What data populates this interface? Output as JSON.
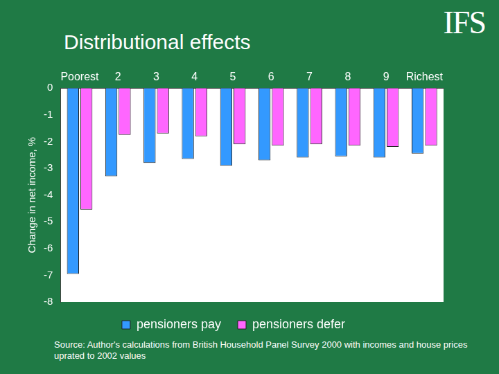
{
  "chart_data": {
    "type": "bar",
    "title": "Distributional effects",
    "logo": "IFS",
    "y_label": "Change in net income, %",
    "source": "Source: Author's calculations from British Household Panel Survey 2000 with incomes and house prices uprated to 2002 values",
    "categories": [
      "Poorest",
      "2",
      "3",
      "4",
      "5",
      "6",
      "7",
      "8",
      "9",
      "Richest"
    ],
    "series": [
      {
        "name": "pensioners pay",
        "color": "#3399ff",
        "values": [
          -6.95,
          -3.3,
          -2.8,
          -2.65,
          -2.9,
          -2.7,
          -2.6,
          -2.55,
          -2.6,
          -2.45
        ]
      },
      {
        "name": "pensioners defer",
        "color": "#ff66ff",
        "values": [
          -4.55,
          -1.75,
          -1.7,
          -1.8,
          -2.1,
          -2.15,
          -2.1,
          -2.15,
          -2.2,
          -2.15
        ]
      }
    ],
    "ylim": [
      -8,
      0
    ],
    "yticks": [
      -8,
      -7,
      -6,
      -5,
      -4,
      -3,
      -2,
      -1,
      0
    ],
    "grid": false,
    "legend": "bottom"
  }
}
